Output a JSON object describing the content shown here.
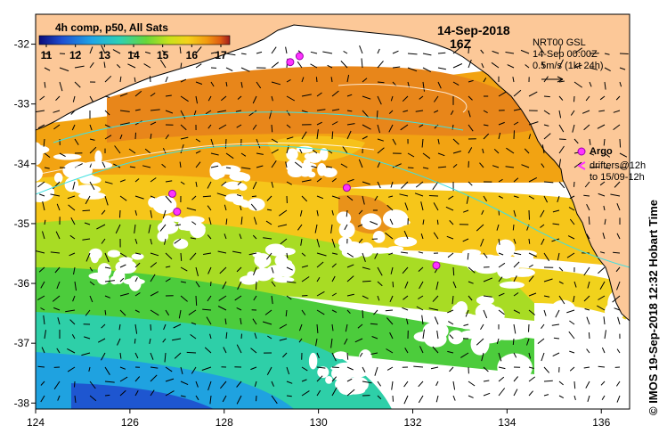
{
  "header": {
    "composite_label": "4h comp, p50, All Sats",
    "date": "14-Sep-2018",
    "time": "16Z"
  },
  "colorbar": {
    "ticks": [
      "11",
      "12",
      "13",
      "14",
      "15",
      "16",
      "17"
    ],
    "colors": [
      "#1a1a9a",
      "#1e50d2",
      "#1f9ee0",
      "#2ecfb8",
      "#5fd24a",
      "#b7e21f",
      "#f0d81a",
      "#f7a10f",
      "#e56a10",
      "#b4281c"
    ]
  },
  "currents_legend": {
    "product": "NRT00 GSL",
    "valid": "14-Sep 00:00Z",
    "scale": "0.5m/s (1kt 24h)"
  },
  "floats_legend": {
    "argo": "Argo",
    "drifters_line1": "drifters@12h",
    "drifters_line2": "to 15/09-12h"
  },
  "axes": {
    "x_ticks": [
      "124",
      "126",
      "128",
      "130",
      "132",
      "134",
      "136"
    ],
    "y_ticks": [
      "-32",
      "-33",
      "-34",
      "-35",
      "-36",
      "-37",
      "-38"
    ]
  },
  "credit": "© IMOS 19-Sep-2018 12:32 Hobart Time",
  "argo_floats": [
    {
      "lon": 129.4,
      "lat": -32.3
    },
    {
      "lon": 129.6,
      "lat": -32.2
    },
    {
      "lon": 126.9,
      "lat": -34.5
    },
    {
      "lon": 127.0,
      "lat": -34.8
    },
    {
      "lon": 130.6,
      "lat": -34.4
    },
    {
      "lon": 132.5,
      "lat": -35.7
    }
  ],
  "land_color": "#fcc898"
}
